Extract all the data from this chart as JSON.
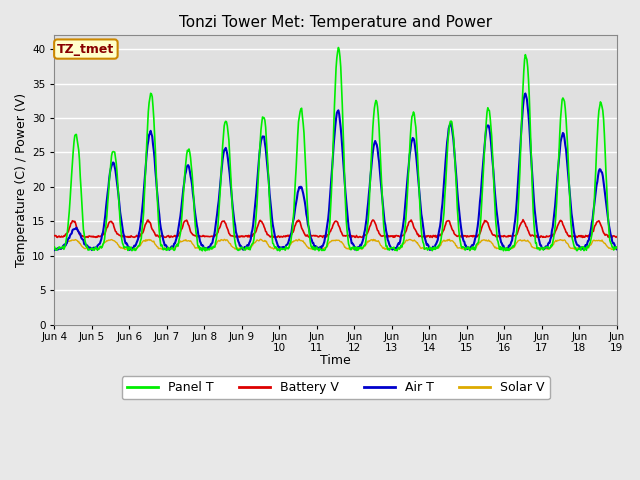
{
  "title": "Tonzi Tower Met: Temperature and Power",
  "xlabel": "Time",
  "ylabel": "Temperature (C) / Power (V)",
  "ylim": [
    0,
    42
  ],
  "yticks": [
    0,
    5,
    10,
    15,
    20,
    25,
    30,
    35,
    40
  ],
  "fig_bg_color": "#e8e8e8",
  "plot_bg_color": "#e0e0e0",
  "grid_color": "#ffffff",
  "legend_labels": [
    "Panel T",
    "Battery V",
    "Air T",
    "Solar V"
  ],
  "line_colors": {
    "panel_t": "#00ee00",
    "battery_v": "#dd0000",
    "air_t": "#0000cc",
    "solar_v": "#ddaa00"
  },
  "annotation_text": "TZ_tmet",
  "annotation_bg": "#ffffcc",
  "annotation_border": "#cc8800",
  "annotation_text_color": "#880000",
  "x_tick_labels": [
    "Jun 4",
    "Jun 5",
    "Jun 6",
    "Jun 7",
    "Jun 8",
    "Jun 9",
    "Jun\n10",
    "Jun\n11",
    "Jun\n12",
    "Jun\n13",
    "Jun\n14",
    "Jun\n15",
    "Jun\n16",
    "Jun\n17",
    "Jun\n18",
    "Jun\n19"
  ],
  "n_days": 15
}
